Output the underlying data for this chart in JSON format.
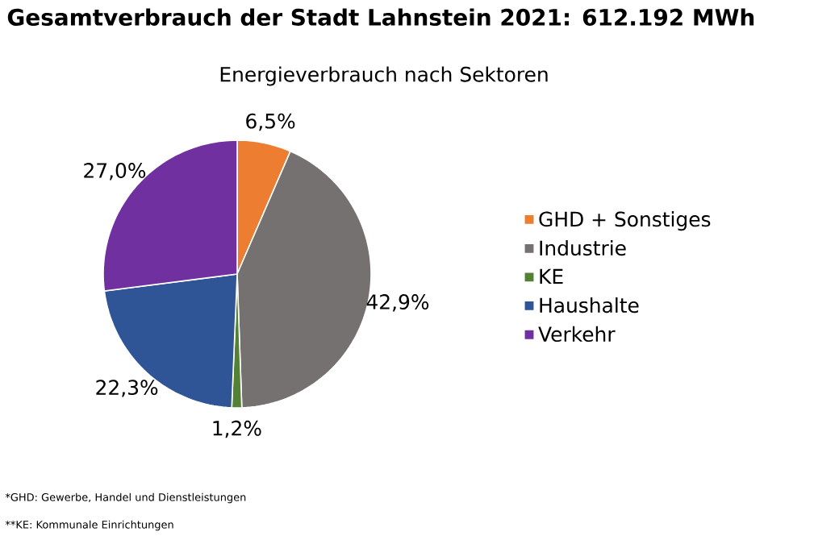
{
  "chart_data": {
    "type": "pie",
    "title": "Gesamtverbrauch der Stadt Lahnstein 2021: 612.192 MWh",
    "subtitle": "Energieverbrauch nach Sektoren",
    "categories": [
      "GHD + Sonstiges",
      "Industrie",
      "KE",
      "Haushalte",
      "Verkehr"
    ],
    "values": [
      6.5,
      42.9,
      1.2,
      22.3,
      27.0
    ],
    "value_labels": [
      "6,5%",
      "42,9%",
      "1,2%",
      "22,3%",
      "27,0%"
    ],
    "colors": [
      "#ed7d31",
      "#767171",
      "#548235",
      "#2f5597",
      "#7030a0"
    ],
    "legend": "right",
    "annotations": [
      "*GHD: Gewerbe, Handel und Dienstleistungen",
      "**KE: Kommunale Einrichtungen"
    ]
  }
}
